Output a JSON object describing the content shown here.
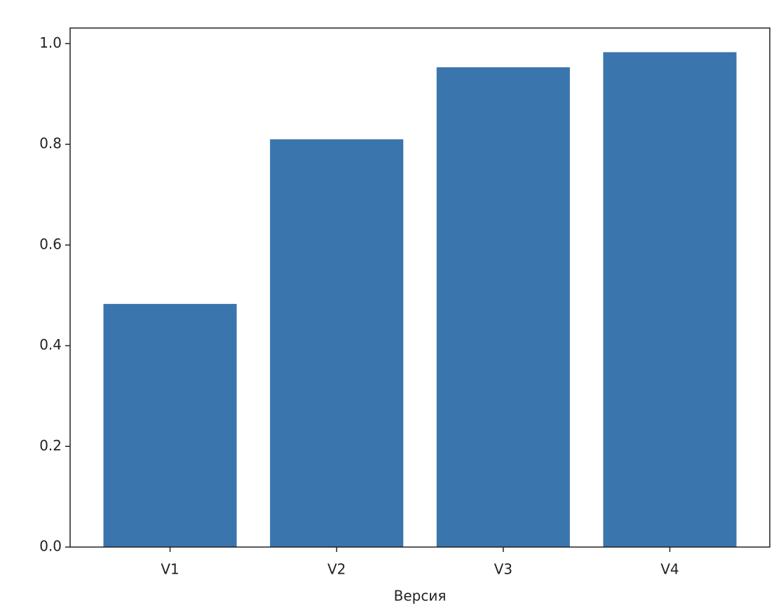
{
  "chart_data": {
    "type": "bar",
    "x_label": "Версия",
    "categories": [
      "V1",
      "V2",
      "V3",
      "V4"
    ],
    "values": [
      0.483,
      0.81,
      0.953,
      0.983
    ],
    "color": "#3a75ae",
    "ylim": [
      0,
      1.031
    ],
    "yticks": [
      {
        "value": 0,
        "label": "0.0"
      },
      0.2,
      0.4,
      0.6,
      0.8,
      {
        "value": 1,
        "label": "1.0"
      }
    ]
  }
}
